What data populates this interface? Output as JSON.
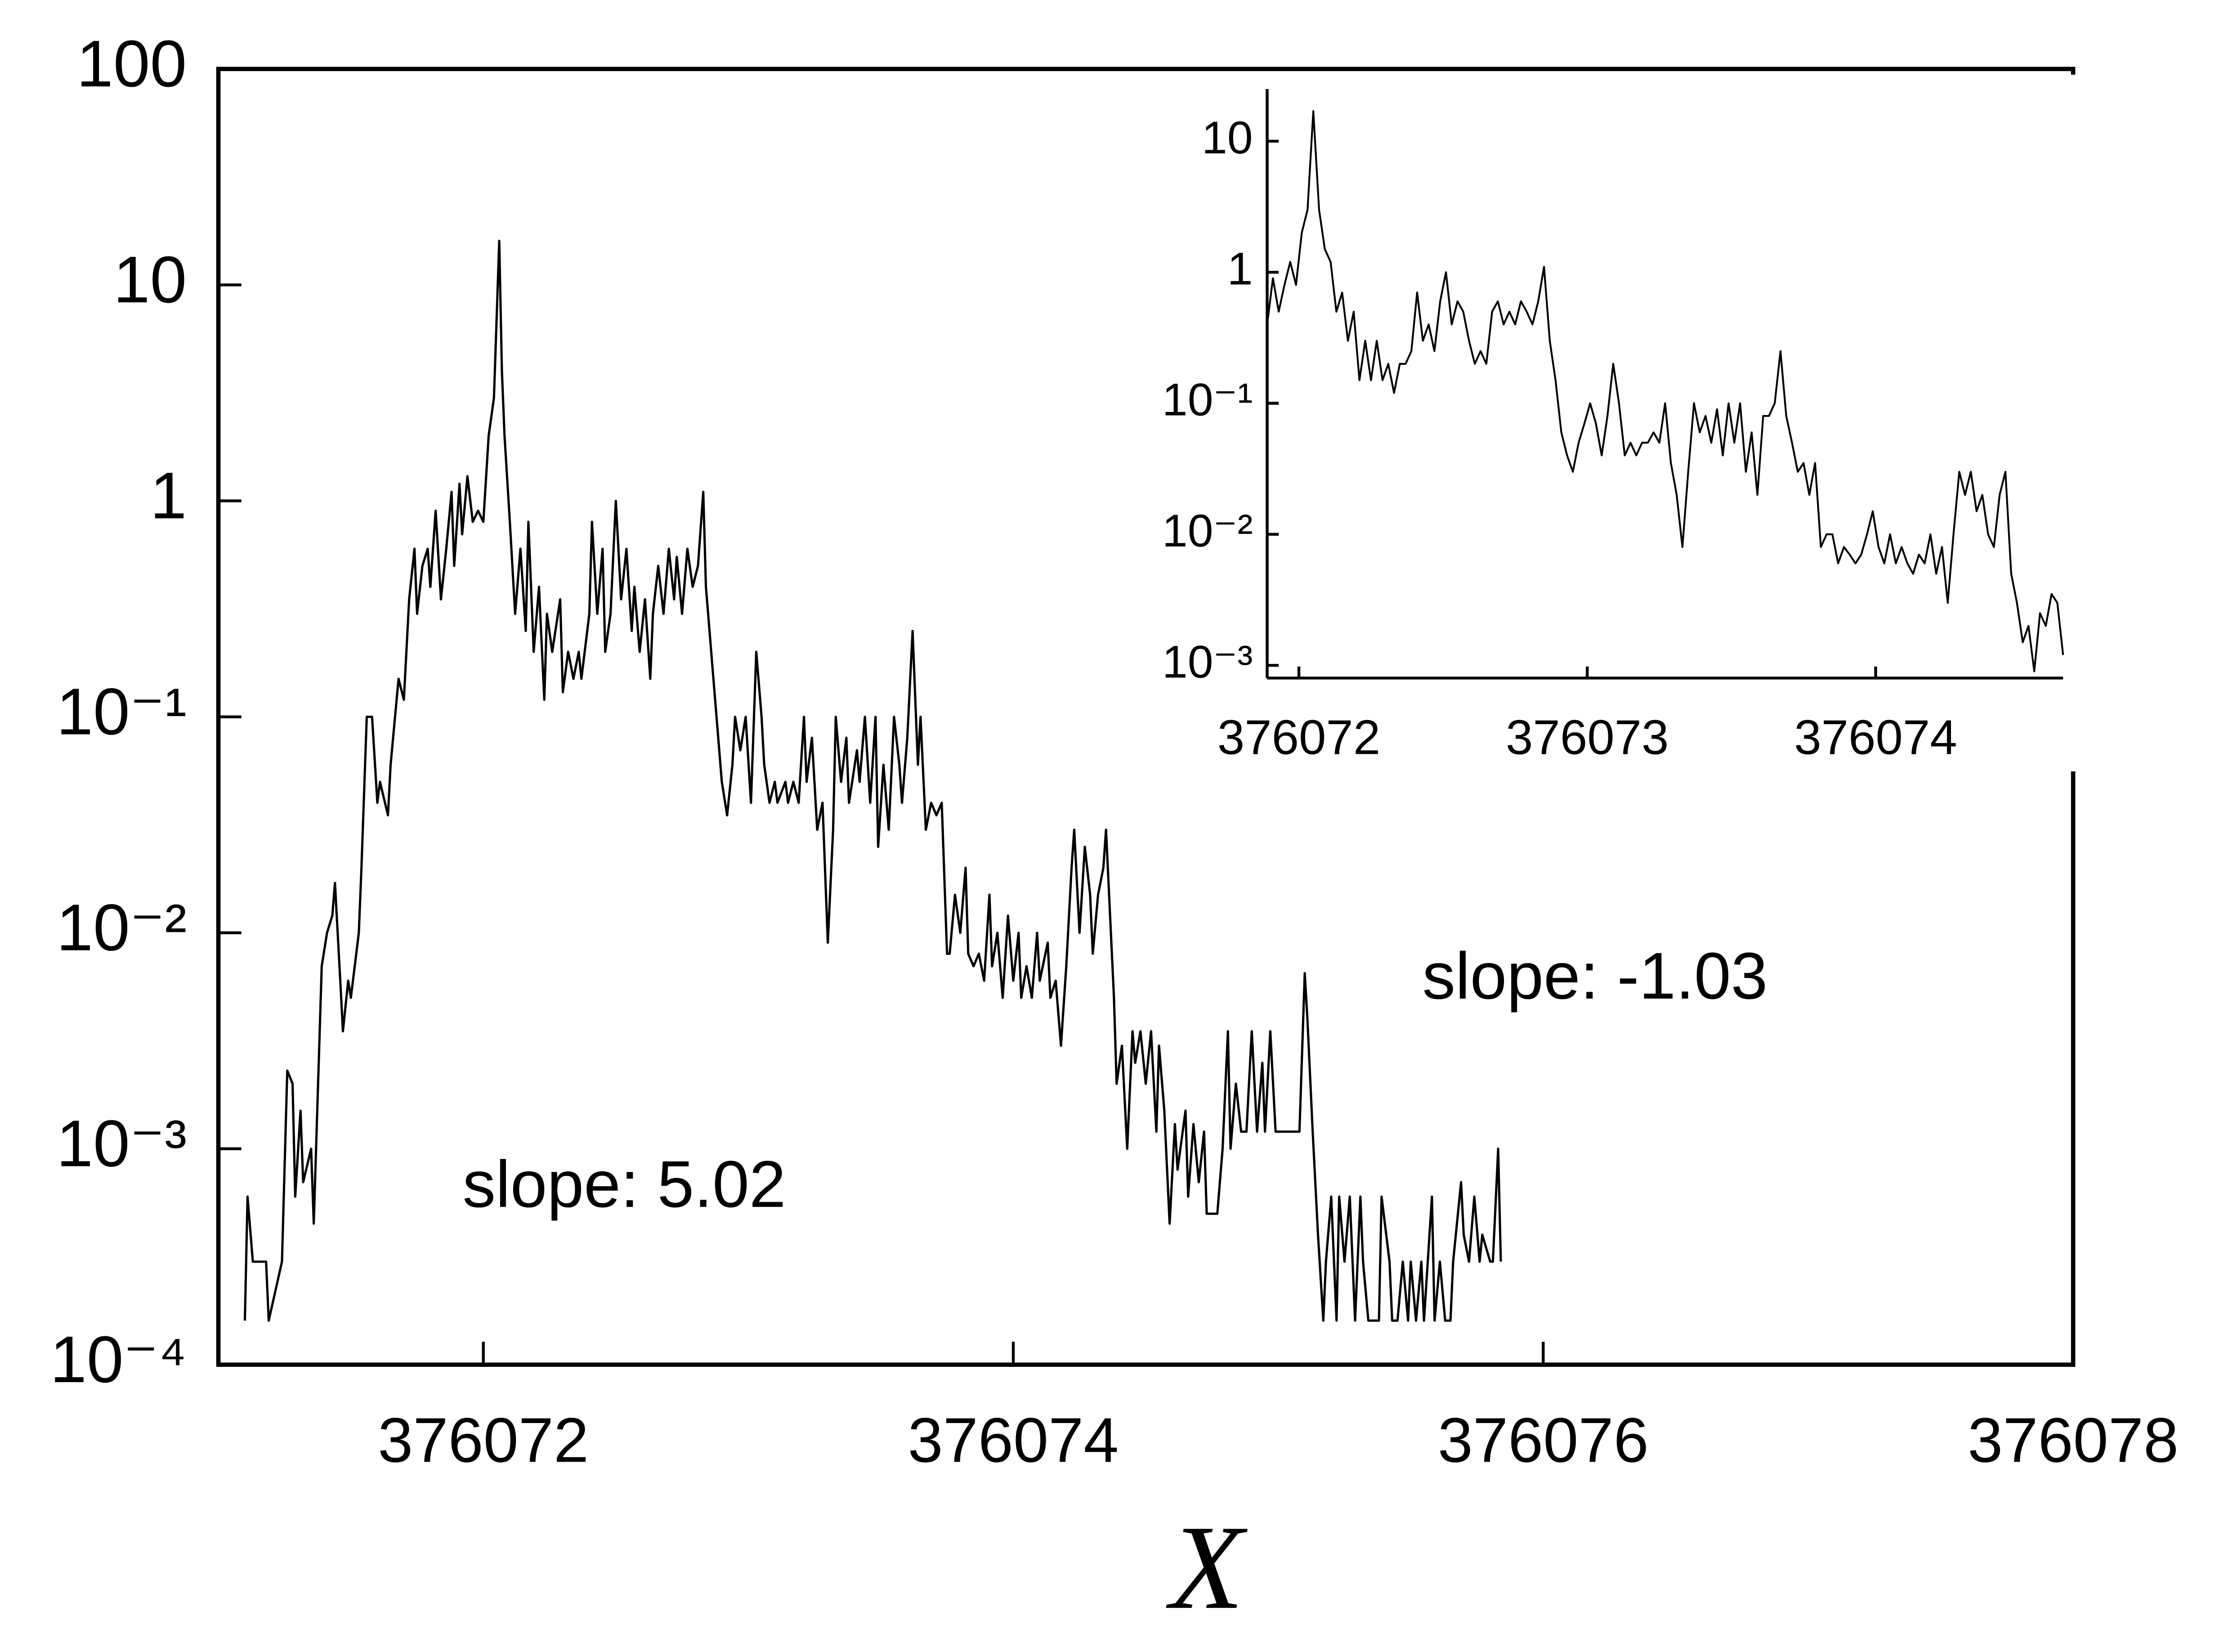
{
  "chart_data": [
    {
      "type": "line",
      "log_y": true,
      "xlabel": "X",
      "annotations": [
        "slope: 5.02",
        "slope: -1.03"
      ],
      "xlim": [
        376071,
        376078
      ],
      "xticks": [
        376072,
        376074,
        376076,
        376078
      ],
      "ylim": [
        0.0001,
        100
      ],
      "yticks": [
        {
          "value": 0.0001,
          "label": "10⁻⁴"
        },
        {
          "value": 0.001,
          "label": "10⁻³"
        },
        {
          "value": 0.01,
          "label": "10⁻²"
        },
        {
          "value": 0.1,
          "label": "10⁻¹"
        },
        1,
        10,
        100
      ],
      "x": [
        376071.1,
        376071.11,
        376071.13,
        376071.18,
        376071.19,
        376071.24,
        376071.26,
        376071.28,
        376071.29,
        376071.31,
        376071.32,
        376071.35,
        376071.36,
        376071.39,
        376071.41,
        376071.43,
        376071.44,
        376071.46,
        376071.47,
        376071.49,
        376071.5,
        376071.53,
        376071.54,
        376071.56,
        376071.58,
        376071.6,
        376071.61,
        376071.64,
        376071.65,
        376071.68,
        376071.7,
        376071.72,
        376071.74,
        376071.75,
        376071.77,
        376071.79,
        376071.8,
        376071.82,
        376071.84,
        376071.86,
        376071.88,
        376071.89,
        376071.91,
        376071.92,
        376071.94,
        376071.96,
        376071.98,
        376072,
        376072.02,
        376072.04,
        376072.06,
        376072.07,
        376072.08,
        376072.1,
        376072.12,
        376072.14,
        376072.16,
        376072.17,
        376072.19,
        376072.21,
        376072.23,
        376072.24,
        376072.26,
        376072.29,
        376072.3,
        376072.32,
        376072.34,
        376072.36,
        376072.37,
        376072.4,
        376072.41,
        376072.43,
        376072.45,
        376072.46,
        376072.48,
        376072.5,
        376072.52,
        376072.54,
        376072.56,
        376072.57,
        376072.59,
        376072.61,
        376072.63,
        376072.64,
        376072.66,
        376072.68,
        376072.7,
        376072.72,
        376072.73,
        376072.75,
        376072.77,
        376072.79,
        376072.81,
        376072.83,
        376072.84,
        376072.86,
        376072.88,
        376072.9,
        376072.92,
        376072.94,
        376072.95,
        376072.97,
        376072.99,
        376073.01,
        376073.03,
        376073.05,
        376073.06,
        376073.08,
        376073.1,
        376073.11,
        376073.14,
        376073.15,
        376073.17,
        376073.19,
        376073.21,
        376073.22,
        376073.24,
        376073.26,
        376073.28,
        376073.3,
        376073.32,
        376073.33,
        376073.35,
        376073.37,
        376073.38,
        376073.41,
        376073.42,
        376073.44,
        376073.46,
        376073.48,
        376073.49,
        376073.51,
        376073.53,
        376073.55,
        376073.57,
        376073.58,
        376073.6,
        376073.62,
        376073.64,
        376073.65,
        376073.67,
        376073.69,
        376073.71,
        376073.73,
        376073.75,
        376073.76,
        376073.78,
        376073.8,
        376073.82,
        376073.83,
        376073.85,
        376073.87,
        376073.89,
        376073.91,
        376073.92,
        376073.94,
        376073.96,
        376073.98,
        376074,
        376074.02,
        376074.03,
        376074.05,
        376074.07,
        376074.09,
        376074.1,
        376074.13,
        376074.14,
        376074.16,
        376074.18,
        376074.2,
        376074.22,
        376074.23,
        376074.25,
        376074.27,
        376074.29,
        376074.3,
        376074.32,
        376074.34,
        376074.35,
        376074.38,
        376074.39,
        376074.41,
        376074.43,
        376074.45,
        376074.46,
        376074.48,
        376074.5,
        376074.52,
        376074.54,
        376074.55,
        376074.57,
        376074.59,
        376074.61,
        376074.62,
        376074.65,
        376074.66,
        376074.68,
        376074.7,
        376074.72,
        376074.73,
        376074.75,
        376074.77,
        376074.79,
        376074.81,
        376074.82,
        376074.84,
        376074.86,
        376074.88,
        376074.9,
        376074.92,
        376074.94,
        376074.95,
        376074.97,
        376074.99,
        376075.01,
        376075.03,
        376075.05,
        376075.06,
        376075.08,
        376075.1,
        376075.11,
        376075.13,
        376075.15,
        376075.17,
        376075.18,
        376075.2,
        376075.22,
        376075.23,
        376075.25,
        376075.27,
        376075.29,
        376075.31,
        376075.32,
        376075.34,
        376075.36,
        376075.38,
        376075.39,
        376075.42,
        376075.43,
        376075.45,
        376075.47,
        376075.49,
        376075.5,
        376075.52,
        376075.54,
        376075.55,
        376075.58,
        376075.59,
        376075.61,
        376075.63,
        376075.65,
        376075.66,
        376075.69,
        376075.7,
        376075.72,
        376075.74,
        376075.76,
        376075.77,
        376075.8,
        376075.81,
        376075.83,
        376075.84
      ],
      "series": [
        {
          "color": "#000000",
          "values": [
            0.00016,
            0.0006,
            0.0003,
            0.0003,
            0.00016,
            0.0003,
            0.0023,
            0.002,
            0.0006,
            0.0015,
            0.0007,
            0.001,
            0.00045,
            0.007,
            0.01,
            0.012,
            0.017,
            0.006,
            0.0035,
            0.006,
            0.005,
            0.01,
            0.02,
            0.1,
            0.1,
            0.04,
            0.05,
            0.035,
            0.06,
            0.15,
            0.12,
            0.35,
            0.6,
            0.3,
            0.5,
            0.6,
            0.4,
            0.9,
            0.35,
            0.6,
            1.1,
            0.5,
            1.2,
            0.7,
            1.3,
            0.8,
            0.9,
            0.8,
            2,
            3,
            16,
            4,
            2,
            0.8,
            0.3,
            0.6,
            0.25,
            0.8,
            0.2,
            0.4,
            0.12,
            0.3,
            0.2,
            0.35,
            0.13,
            0.2,
            0.15,
            0.2,
            0.15,
            0.3,
            0.8,
            0.3,
            0.6,
            0.2,
            0.3,
            1,
            0.35,
            0.6,
            0.25,
            0.4,
            0.2,
            0.35,
            0.15,
            0.3,
            0.5,
            0.3,
            0.6,
            0.35,
            0.55,
            0.3,
            0.6,
            0.4,
            0.5,
            1.1,
            0.4,
            0.2,
            0.1,
            0.05,
            0.035,
            0.06,
            0.1,
            0.07,
            0.1,
            0.04,
            0.2,
            0.1,
            0.06,
            0.04,
            0.05,
            0.04,
            0.05,
            0.04,
            0.05,
            0.04,
            0.1,
            0.05,
            0.08,
            0.03,
            0.04,
            0.009,
            0.03,
            0.1,
            0.05,
            0.08,
            0.04,
            0.07,
            0.05,
            0.1,
            0.04,
            0.1,
            0.025,
            0.06,
            0.03,
            0.1,
            0.06,
            0.04,
            0.08,
            0.25,
            0.06,
            0.1,
            0.03,
            0.04,
            0.035,
            0.04,
            0.008,
            0.008,
            0.015,
            0.01,
            0.02,
            0.008,
            0.007,
            0.008,
            0.006,
            0.015,
            0.007,
            0.01,
            0.005,
            0.012,
            0.006,
            0.01,
            0.005,
            0.007,
            0.005,
            0.01,
            0.006,
            0.009,
            0.005,
            0.006,
            0.003,
            0.007,
            0.02,
            0.03,
            0.01,
            0.025,
            0.015,
            0.008,
            0.015,
            0.02,
            0.03,
            0.005,
            0.002,
            0.003,
            0.001,
            0.0035,
            0.0025,
            0.0035,
            0.002,
            0.0035,
            0.0012,
            0.003,
            0.0015,
            0.00045,
            0.0013,
            0.0008,
            0.0015,
            0.0006,
            0.0013,
            0.0007,
            0.0012,
            0.0005,
            0.0005,
            0.0005,
            0.001,
            0.0035,
            0.001,
            0.002,
            0.0012,
            0.0012,
            0.0035,
            0.0012,
            0.0025,
            0.0012,
            0.0035,
            0.0012,
            0.0012,
            0.0012,
            0.0012,
            0.0012,
            0.0012,
            0.0065,
            0.004,
            0.0012,
            0.0004,
            0.00016,
            0.0003,
            0.0006,
            0.00016,
            0.0006,
            0.0003,
            0.0006,
            0.00016,
            0.0006,
            0.0003,
            0.00016,
            0.00016,
            0.00016,
            0.0006,
            0.0003,
            0.00016,
            0.00016,
            0.0003,
            0.00016,
            0.0003,
            0.00016,
            0.0003,
            0.00016,
            0.0006,
            0.00016,
            0.0003,
            0.00016,
            0.00016,
            0.0003,
            0.0007,
            0.0004,
            0.0003,
            0.0006,
            0.0003,
            0.0004,
            0.0003,
            0.0003,
            0.001,
            0.0003
          ]
        }
      ]
    },
    {
      "type": "line",
      "log_y": true,
      "xlim": [
        376071.89,
        376074.65
      ],
      "xticks": [
        376072,
        376073,
        376074
      ],
      "ylim": [
        0.0008,
        25
      ],
      "yticks": [
        {
          "value": 0.001,
          "label": "10⁻³"
        },
        {
          "value": 0.01,
          "label": "10⁻²"
        },
        {
          "value": 0.1,
          "label": "10⁻¹"
        },
        1,
        10
      ],
      "x": [
        376071.89,
        376071.91,
        376071.93,
        376071.95,
        376071.97,
        376071.99,
        376072.01,
        376072.03,
        376072.05,
        376072.07,
        376072.09,
        376072.11,
        376072.13,
        376072.15,
        376072.17,
        376072.19,
        376072.21,
        376072.23,
        376072.25,
        376072.27,
        376072.29,
        376072.31,
        376072.33,
        376072.35,
        376072.37,
        376072.39,
        376072.41,
        376072.43,
        376072.45,
        376072.47,
        376072.49,
        376072.51,
        376072.53,
        376072.55,
        376072.57,
        376072.59,
        376072.61,
        376072.63,
        376072.65,
        376072.67,
        376072.69,
        376072.71,
        376072.73,
        376072.75,
        376072.77,
        376072.79,
        376072.81,
        376072.83,
        376072.85,
        376072.87,
        376072.89,
        376072.91,
        376072.93,
        376072.95,
        376072.97,
        376072.99,
        376073.01,
        376073.03,
        376073.05,
        376073.07,
        376073.09,
        376073.11,
        376073.13,
        376073.15,
        376073.17,
        376073.19,
        376073.21,
        376073.23,
        376073.25,
        376073.27,
        376073.29,
        376073.31,
        376073.33,
        376073.35,
        376073.37,
        376073.39,
        376073.41,
        376073.43,
        376073.45,
        376073.47,
        376073.49,
        376073.51,
        376073.53,
        376073.55,
        376073.57,
        376073.59,
        376073.61,
        376073.63,
        376073.65,
        376073.67,
        376073.69,
        376073.71,
        376073.73,
        376073.75,
        376073.77,
        376073.79,
        376073.81,
        376073.83,
        376073.85,
        376073.87,
        376073.89,
        376073.91,
        376073.93,
        376073.95,
        376073.97,
        376073.99,
        376074.01,
        376074.03,
        376074.05,
        376074.07,
        376074.09,
        376074.11,
        376074.13,
        376074.15,
        376074.17,
        376074.19,
        376074.21,
        376074.23,
        376074.25,
        376074.27,
        376074.29,
        376074.31,
        376074.33,
        376074.35,
        376074.37,
        376074.39,
        376074.41,
        376074.43,
        376074.45,
        376074.47,
        376074.49,
        376074.51,
        376074.53,
        376074.55,
        376074.57,
        376074.59,
        376074.61,
        376074.63,
        376074.65
      ],
      "series": [
        {
          "color": "#000000",
          "values": [
            0.4,
            0.9,
            0.5,
            0.8,
            1.2,
            0.8,
            2,
            3,
            17,
            3,
            1.5,
            1.2,
            0.5,
            0.7,
            0.3,
            0.5,
            0.15,
            0.3,
            0.15,
            0.3,
            0.15,
            0.2,
            0.12,
            0.2,
            0.2,
            0.25,
            0.7,
            0.3,
            0.4,
            0.25,
            0.6,
            1,
            0.4,
            0.6,
            0.5,
            0.3,
            0.2,
            0.25,
            0.2,
            0.5,
            0.6,
            0.4,
            0.5,
            0.4,
            0.6,
            0.5,
            0.4,
            0.6,
            1.1,
            0.3,
            0.15,
            0.06,
            0.04,
            0.03,
            0.05,
            0.07,
            0.1,
            0.07,
            0.04,
            0.08,
            0.2,
            0.1,
            0.04,
            0.05,
            0.04,
            0.05,
            0.05,
            0.06,
            0.05,
            0.1,
            0.035,
            0.02,
            0.008,
            0.03,
            0.1,
            0.06,
            0.08,
            0.05,
            0.09,
            0.04,
            0.1,
            0.05,
            0.1,
            0.03,
            0.06,
            0.02,
            0.08,
            0.08,
            0.1,
            0.25,
            0.08,
            0.05,
            0.03,
            0.035,
            0.02,
            0.035,
            0.008,
            0.01,
            0.01,
            0.006,
            0.008,
            0.007,
            0.006,
            0.007,
            0.01,
            0.015,
            0.008,
            0.006,
            0.01,
            0.006,
            0.008,
            0.006,
            0.005,
            0.007,
            0.006,
            0.01,
            0.005,
            0.008,
            0.003,
            0.01,
            0.03,
            0.02,
            0.03,
            0.015,
            0.02,
            0.01,
            0.008,
            0.02,
            0.03,
            0.005,
            0.003,
            0.0015,
            0.002,
            0.0009,
            0.0025,
            0.002,
            0.0035,
            0.003,
            0.0012
          ]
        }
      ]
    }
  ]
}
